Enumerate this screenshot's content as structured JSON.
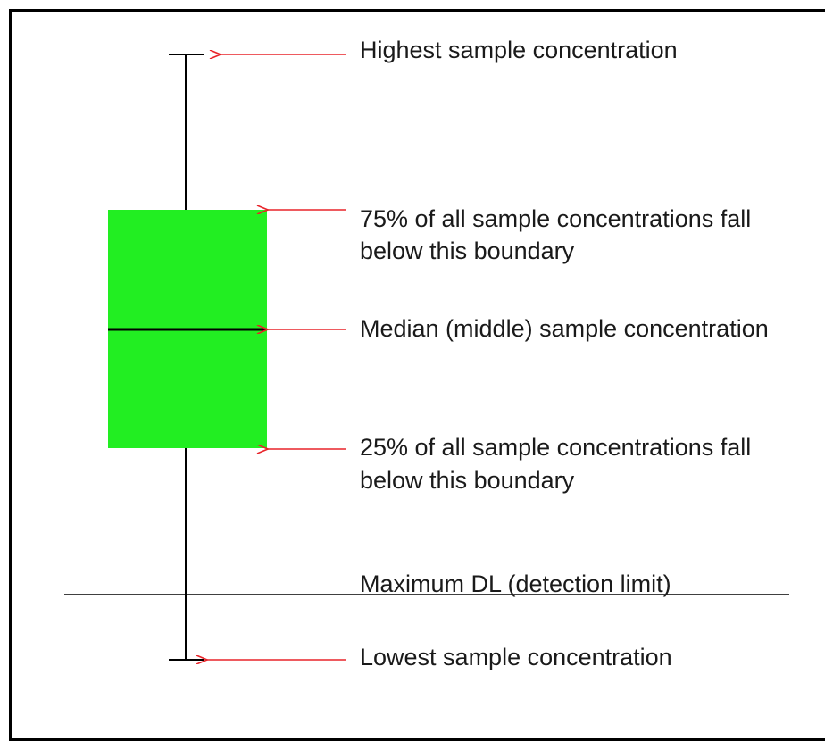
{
  "colors": {
    "box_fill": "#22ee22",
    "arrow": "#e8242a",
    "line": "#000000",
    "text": "#1a1a1a"
  },
  "labels": {
    "highest": "Highest sample concentration",
    "q3_line1": "75% of all sample concentrations fall",
    "q3_line2": "below this boundary",
    "median": "Median (middle) sample concentration",
    "q1_line1": "25% of all sample concentrations fall",
    "q1_line2": "below this boundary",
    "max_dl": "Maximum DL (detection limit)",
    "lowest": "Lowest sample concentration"
  }
}
